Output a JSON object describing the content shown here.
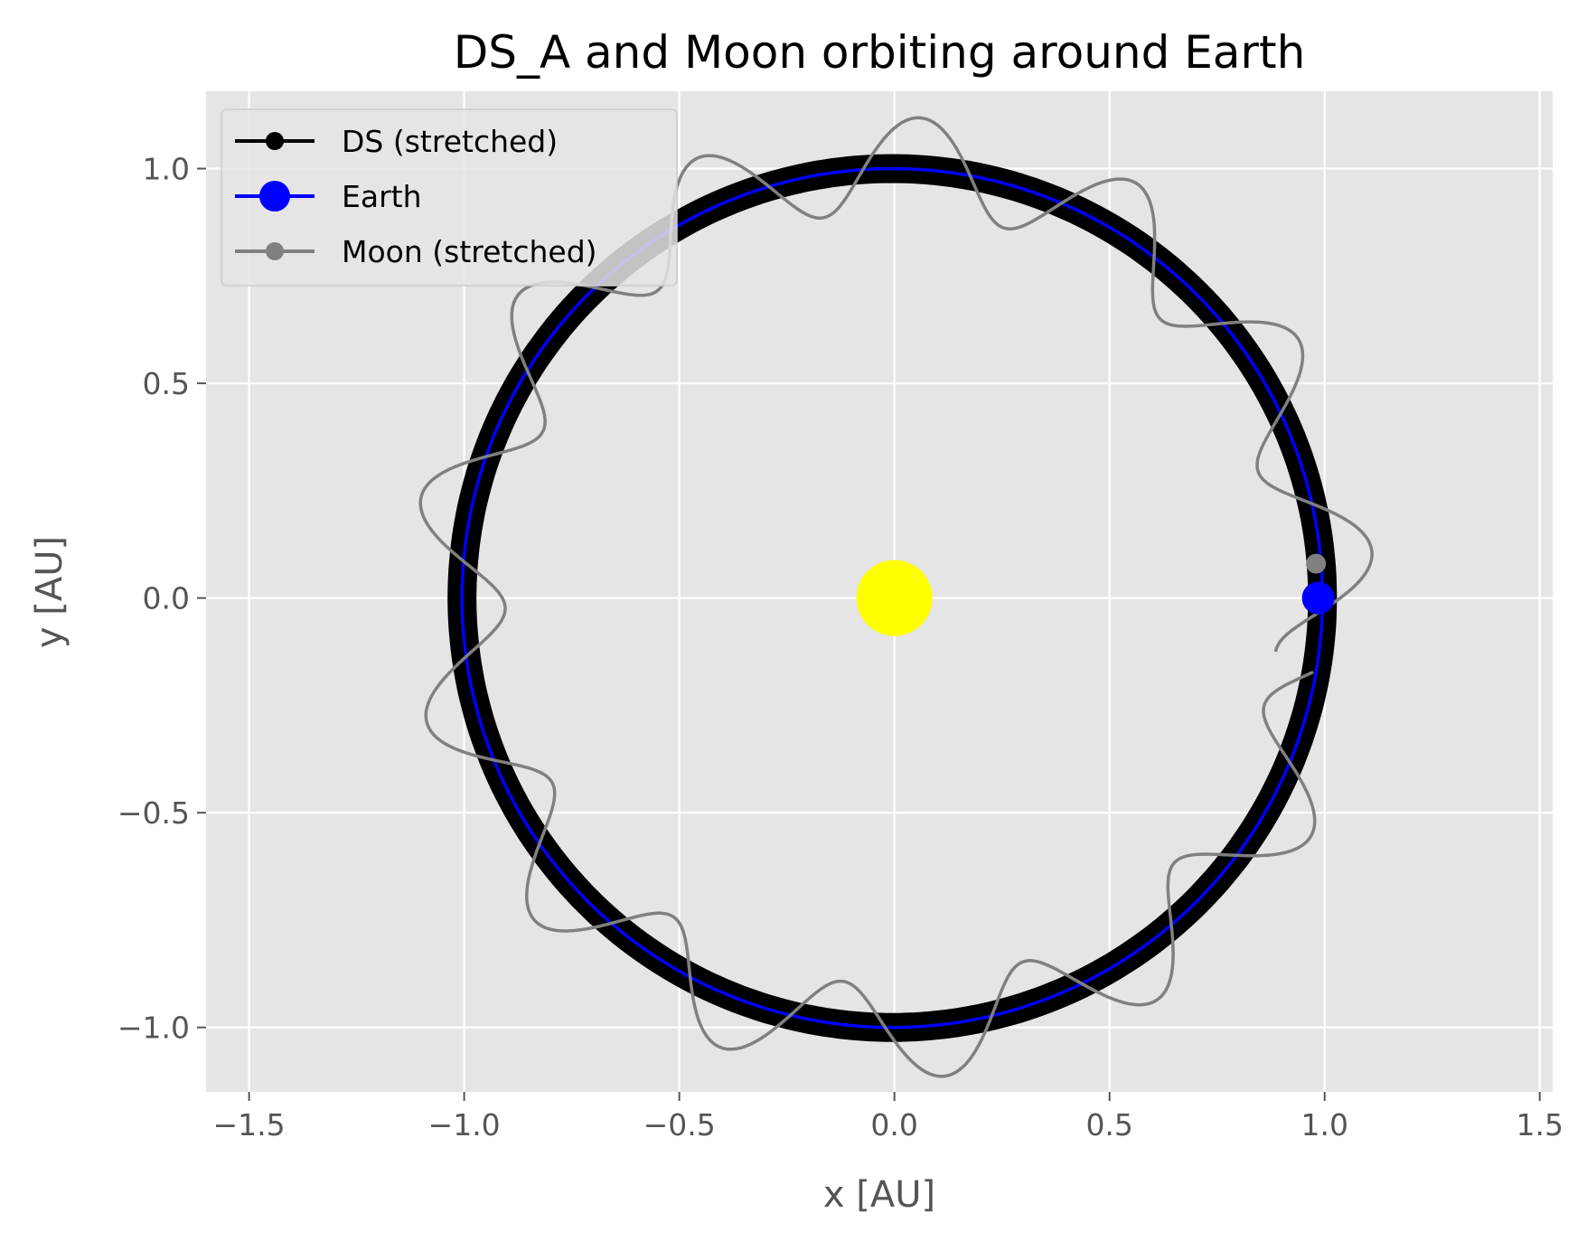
{
  "chart_data": {
    "type": "line",
    "title": "DS_A and Moon orbiting around Earth",
    "xlabel": "x [AU]",
    "ylabel": "y [AU]",
    "xlim": [
      -1.6,
      1.53
    ],
    "ylim": [
      -1.15,
      1.18
    ],
    "xticks": [
      -1.5,
      -1.0,
      -0.5,
      0.0,
      0.5,
      1.0,
      1.5
    ],
    "yticks": [
      -1.0,
      -0.5,
      0.0,
      0.5,
      1.0
    ],
    "xtick_labels": [
      "−1.5",
      "−1.0",
      "−0.5",
      "0.0",
      "0.5",
      "1.0",
      "1.5"
    ],
    "ytick_labels": [
      "−1.0",
      "−0.5",
      "0.0",
      "0.5",
      "1.0"
    ],
    "grid": true,
    "legend_position": "top-left",
    "series": [
      {
        "name": "DS (stretched)",
        "color": "#000000",
        "kind": "circle-orbit",
        "radius": 1.0,
        "center": [
          -0.005,
          0.0
        ]
      },
      {
        "name": "Earth",
        "color": "#0000ff",
        "kind": "circle-orbit",
        "radius": 1.0,
        "center": [
          -0.005,
          0.0
        ],
        "current_position": [
          0.985,
          0.0
        ]
      },
      {
        "name": "Moon (stretched)",
        "color": "#808080",
        "kind": "epicycle",
        "orbit_radius": 1.0,
        "loop_radius": 0.22,
        "loops": 13.3,
        "start_angle_deg": -8,
        "end_angle_deg": 350,
        "current_position": [
          0.98,
          0.08
        ]
      }
    ],
    "sun": {
      "position": [
        0.0,
        0.0
      ],
      "color": "#ffff00"
    }
  }
}
